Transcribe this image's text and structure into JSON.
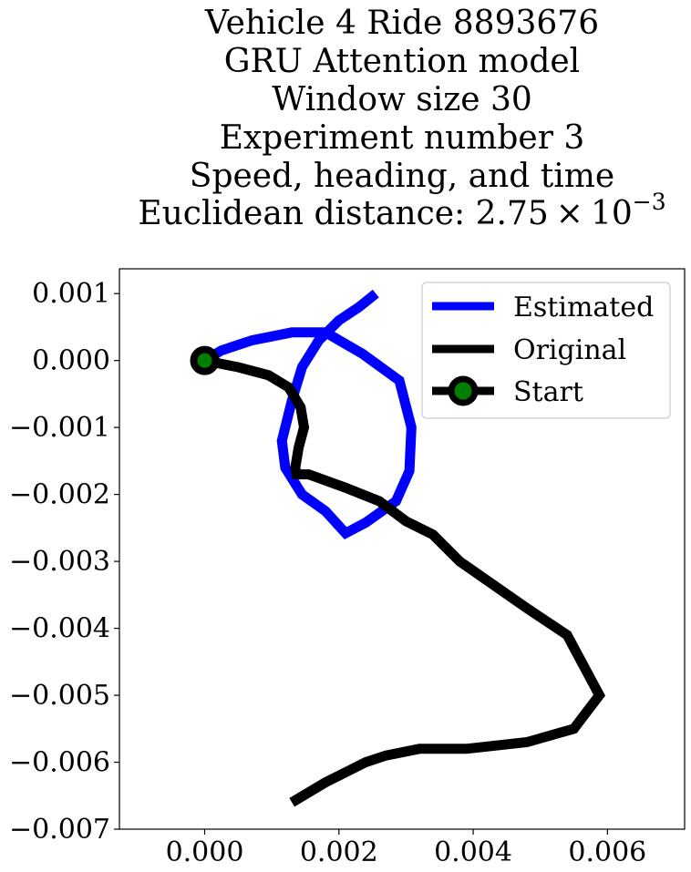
{
  "chart_data": {
    "type": "line",
    "title_lines": [
      "Vehicle 4 Ride 8893676",
      "GRU Attention model",
      "Window size 30",
      "Experiment number 3",
      "Speed, heading, and time"
    ],
    "title_distance": {
      "prefix": "Euclidean distance: ",
      "mantissa": "2.75",
      "times": "×",
      "base": "10",
      "exponent": "−3"
    },
    "xlabel": "",
    "ylabel": "",
    "xlim": [
      -0.00127,
      0.00715
    ],
    "ylim": [
      -0.007,
      0.00137
    ],
    "xticks": [
      {
        "value": 0.0,
        "label": "0.000"
      },
      {
        "value": 0.002,
        "label": "0.002"
      },
      {
        "value": 0.004,
        "label": "0.004"
      },
      {
        "value": 0.006,
        "label": "0.006"
      }
    ],
    "yticks": [
      {
        "value": 0.001,
        "label": "0.001"
      },
      {
        "value": 0.0,
        "label": "0.000"
      },
      {
        "value": -0.001,
        "label": "−0.001"
      },
      {
        "value": -0.002,
        "label": "−0.002"
      },
      {
        "value": -0.003,
        "label": "−0.003"
      },
      {
        "value": -0.004,
        "label": "−0.004"
      },
      {
        "value": -0.005,
        "label": "−0.005"
      },
      {
        "value": -0.006,
        "label": "−0.006"
      },
      {
        "value": -0.007,
        "label": "−0.007"
      }
    ],
    "grid": false,
    "legend_position": "upper right",
    "series": [
      {
        "name": "Estimated",
        "color": "#0000ff",
        "x": [
          0.0,
          0.00025,
          0.0007,
          0.0013,
          0.0018,
          0.00235,
          0.0029,
          0.00308,
          0.00305,
          0.00285,
          0.0024,
          0.0021,
          0.0018,
          0.00145,
          0.0012,
          0.00115,
          0.0013,
          0.00145,
          0.0017,
          0.002,
          0.0023,
          0.00255
        ],
        "y": [
          0.0,
          0.00015,
          0.0003,
          0.00042,
          0.00042,
          0.0001,
          -0.0003,
          -0.001,
          -0.00165,
          -0.0021,
          -0.00242,
          -0.00258,
          -0.00225,
          -0.002,
          -0.0016,
          -0.0012,
          -0.0006,
          -0.0001,
          0.0003,
          0.0006,
          0.0008,
          0.001
        ]
      },
      {
        "name": "Original",
        "color": "#000000",
        "x": [
          0.0,
          0.0005,
          0.00095,
          0.00125,
          0.00143,
          0.00148,
          0.0014,
          0.00135,
          0.00137,
          0.00155,
          0.0021,
          0.0026,
          0.003,
          0.0034,
          0.0038,
          0.0048,
          0.0054,
          0.00588,
          0.0055,
          0.0048,
          0.0039,
          0.0032,
          0.0027,
          0.0024,
          0.0018,
          0.0013
        ],
        "y": [
          0.0,
          -0.0001,
          -0.00022,
          -0.0004,
          -0.0007,
          -0.001,
          -0.0013,
          -0.0016,
          -0.0017,
          -0.0017,
          -0.0019,
          -0.0021,
          -0.0024,
          -0.0026,
          -0.003,
          -0.0037,
          -0.0041,
          -0.005,
          -0.0055,
          -0.0057,
          -0.0058,
          -0.0058,
          -0.0059,
          -0.006,
          -0.0063,
          -0.0066
        ]
      }
    ],
    "start": {
      "name": "Start",
      "x": 0.0,
      "y": 0.0,
      "marker_face": "#008000",
      "marker_edge": "#000000"
    },
    "colors": {
      "estimated": "#0000ff",
      "original": "#000000",
      "start_face": "#008000"
    }
  }
}
